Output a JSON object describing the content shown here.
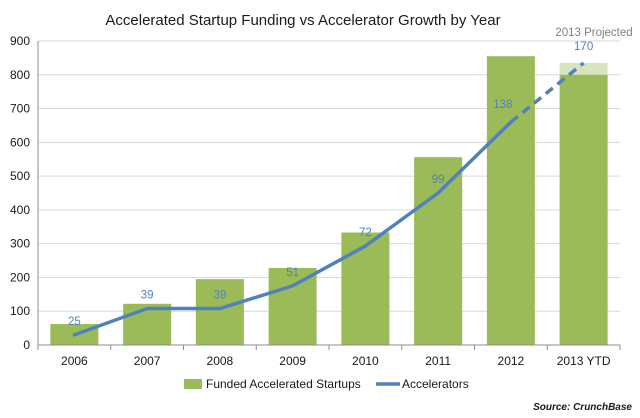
{
  "chart_data": {
    "type": "bar",
    "title": "Accelerated Startup Funding vs Accelerator Growth by Year",
    "categories": [
      "2006",
      "2007",
      "2008",
      "2009",
      "2010",
      "2011",
      "2012",
      "2013 YTD"
    ],
    "ylim": [
      0,
      900
    ],
    "yticks": [
      "0",
      "100",
      "200",
      "300",
      "400",
      "500",
      "600",
      "700",
      "800",
      "900"
    ],
    "grid": true,
    "series": [
      {
        "name": "Funded Accelerated Startups",
        "kind": "bar",
        "color": "#9bbb59",
        "values": [
          62,
          122,
          195,
          228,
          333,
          556,
          855,
          800
        ],
        "projected_top": 835
      },
      {
        "name": "Accelerators",
        "kind": "line",
        "color": "#4f81bd",
        "values": [
          25,
          39,
          39,
          51,
          72,
          99,
          138,
          170
        ],
        "plotted_y": [
          30,
          108,
          108,
          175,
          293,
          450,
          660,
          835
        ],
        "labels": [
          "25",
          "39",
          "39",
          "51",
          "72",
          "99",
          "138",
          "170"
        ],
        "projected_from_index": 6
      }
    ],
    "projection_label": "2013 Projected",
    "source": "Source: CrunchBase",
    "legend_position": "bottom"
  }
}
